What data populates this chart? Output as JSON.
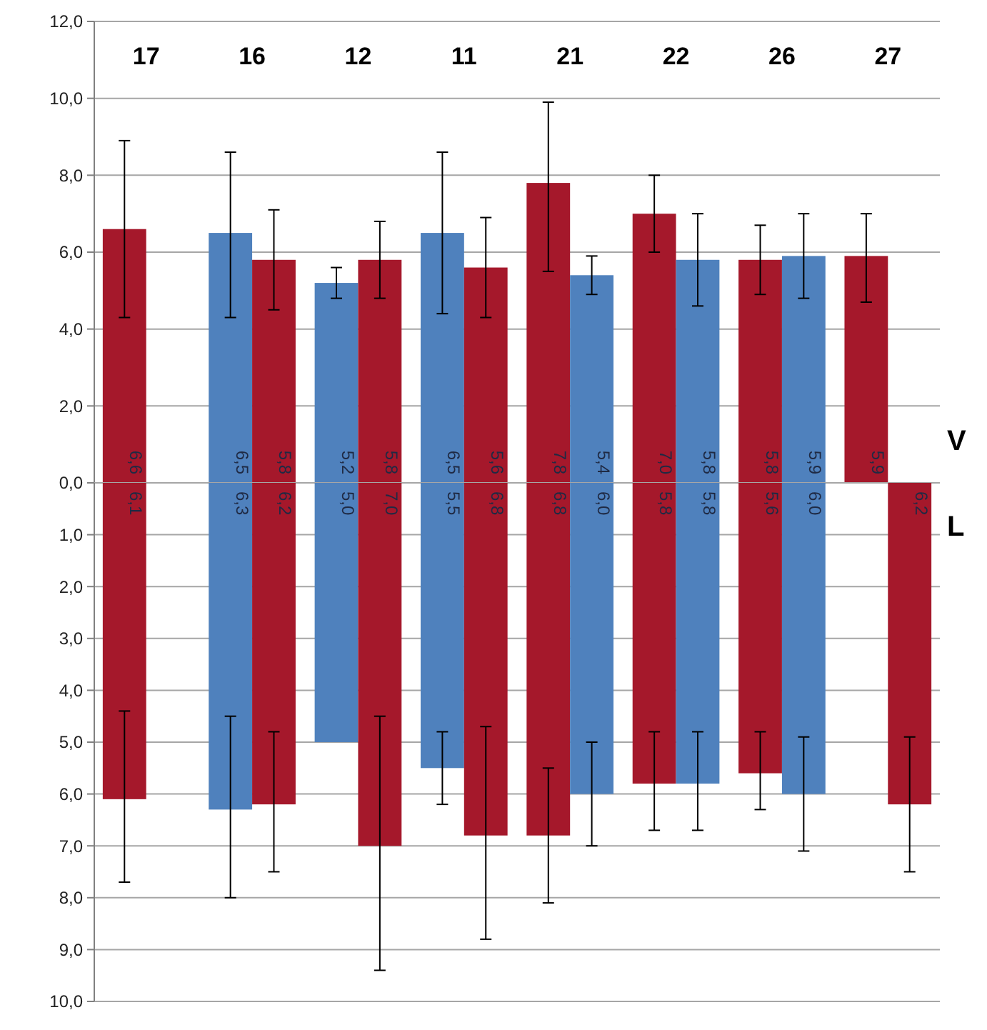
{
  "chart_data": [
    {
      "type": "bar",
      "ylabel": "V",
      "categories": [
        "17",
        "16",
        "12",
        "11",
        "21",
        "22",
        "26",
        "27"
      ],
      "ylim": [
        0,
        12
      ],
      "yticks": [
        {
          "value": 0,
          "label": "0,0"
        },
        {
          "value": 2,
          "label": "2,0"
        },
        {
          "value": 4,
          "label": "4,0"
        },
        {
          "value": 6,
          "label": "6,0"
        },
        {
          "value": 8,
          "label": "8,0"
        },
        {
          "value": 10,
          "label": "10,0"
        },
        {
          "value": 12,
          "label": "12,0"
        }
      ],
      "grid": "y",
      "tick_labels": true,
      "series": [
        {
          "values": [
            6.6,
            6.5,
            5.2,
            6.5,
            7.8,
            7.0,
            5.8,
            5.9
          ],
          "colors": [
            "#a5182b",
            "#4f81bd",
            "#4f81bd",
            "#4f81bd",
            "#a5182b",
            "#a5182b",
            "#a5182b",
            "#a5182b"
          ],
          "value_labels": [
            "6,6",
            "6,5",
            "5,2",
            "6,5",
            "7,8",
            "7,0",
            "5,8",
            "5,9"
          ],
          "errors": [
            [
              4.3,
              8.9
            ],
            [
              4.3,
              8.6
            ],
            [
              4.8,
              5.6
            ],
            [
              4.4,
              8.6
            ],
            [
              5.5,
              9.9
            ],
            [
              6.0,
              8.0
            ],
            [
              4.9,
              6.7
            ],
            [
              4.7,
              7.0
            ]
          ]
        },
        {
          "values": [
            null,
            5.8,
            5.8,
            5.6,
            5.4,
            5.8,
            5.9,
            null
          ],
          "colors": [
            null,
            "#a5182b",
            "#a5182b",
            "#a5182b",
            "#4f81bd",
            "#4f81bd",
            "#4f81bd",
            null
          ],
          "value_labels": [
            null,
            "5,8",
            "5,8",
            "5,6",
            "5,4",
            "5,8",
            "5,9",
            null
          ],
          "errors": [
            null,
            [
              4.5,
              7.1
            ],
            [
              4.8,
              6.8
            ],
            [
              4.3,
              6.9
            ],
            [
              4.9,
              5.9
            ],
            [
              4.6,
              7.0
            ],
            [
              4.8,
              7.0
            ],
            null
          ]
        }
      ]
    },
    {
      "type": "bar",
      "ylabel": "L",
      "categories": [
        "17",
        "16",
        "12",
        "11",
        "21",
        "22",
        "26",
        "27"
      ],
      "ylim": [
        10,
        0
      ],
      "yticks": [
        {
          "value": 0,
          "label": null
        },
        {
          "value": 1,
          "label": "1,0"
        },
        {
          "value": 2,
          "label": "2,0"
        },
        {
          "value": 3,
          "label": "3,0"
        },
        {
          "value": 4,
          "label": "4,0"
        },
        {
          "value": 5,
          "label": "5,0"
        },
        {
          "value": 6,
          "label": "6,0"
        },
        {
          "value": 7,
          "label": "7,0"
        },
        {
          "value": 8,
          "label": "8,0"
        },
        {
          "value": 9,
          "label": "9,0"
        },
        {
          "value": 10,
          "label": "10,0"
        }
      ],
      "grid": "y",
      "tick_labels": "y",
      "series": [
        {
          "values": [
            6.1,
            6.3,
            5.0,
            5.5,
            6.8,
            5.8,
            5.6,
            null
          ],
          "colors": [
            "#a5182b",
            "#4f81bd",
            "#4f81bd",
            "#4f81bd",
            "#a5182b",
            "#a5182b",
            "#a5182b",
            null
          ],
          "value_labels": [
            "6,1",
            "6,3",
            "5,0",
            "5,5",
            "6,8",
            "5,8",
            "5,6",
            null
          ],
          "errors": [
            [
              4.4,
              7.7
            ],
            [
              4.5,
              8.0
            ],
            null,
            [
              4.8,
              6.2
            ],
            [
              5.5,
              8.1
            ],
            [
              4.8,
              6.7
            ],
            [
              4.8,
              6.3
            ],
            null
          ]
        },
        {
          "values": [
            null,
            6.2,
            7.0,
            6.8,
            6.0,
            5.8,
            6.0,
            6.2
          ],
          "colors": [
            null,
            "#a5182b",
            "#a5182b",
            "#a5182b",
            "#4f81bd",
            "#4f81bd",
            "#4f81bd",
            "#a5182b"
          ],
          "value_labels": [
            null,
            "6,2",
            "7,0",
            "6,8",
            "6,0",
            "5,8",
            "6,0",
            "6,2"
          ],
          "errors": [
            null,
            [
              4.8,
              7.5
            ],
            [
              4.5,
              9.4
            ],
            [
              4.7,
              8.8
            ],
            [
              5.0,
              7.0
            ],
            [
              4.8,
              6.7
            ],
            [
              4.9,
              7.1
            ],
            [
              4.9,
              7.5
            ]
          ]
        }
      ]
    }
  ]
}
